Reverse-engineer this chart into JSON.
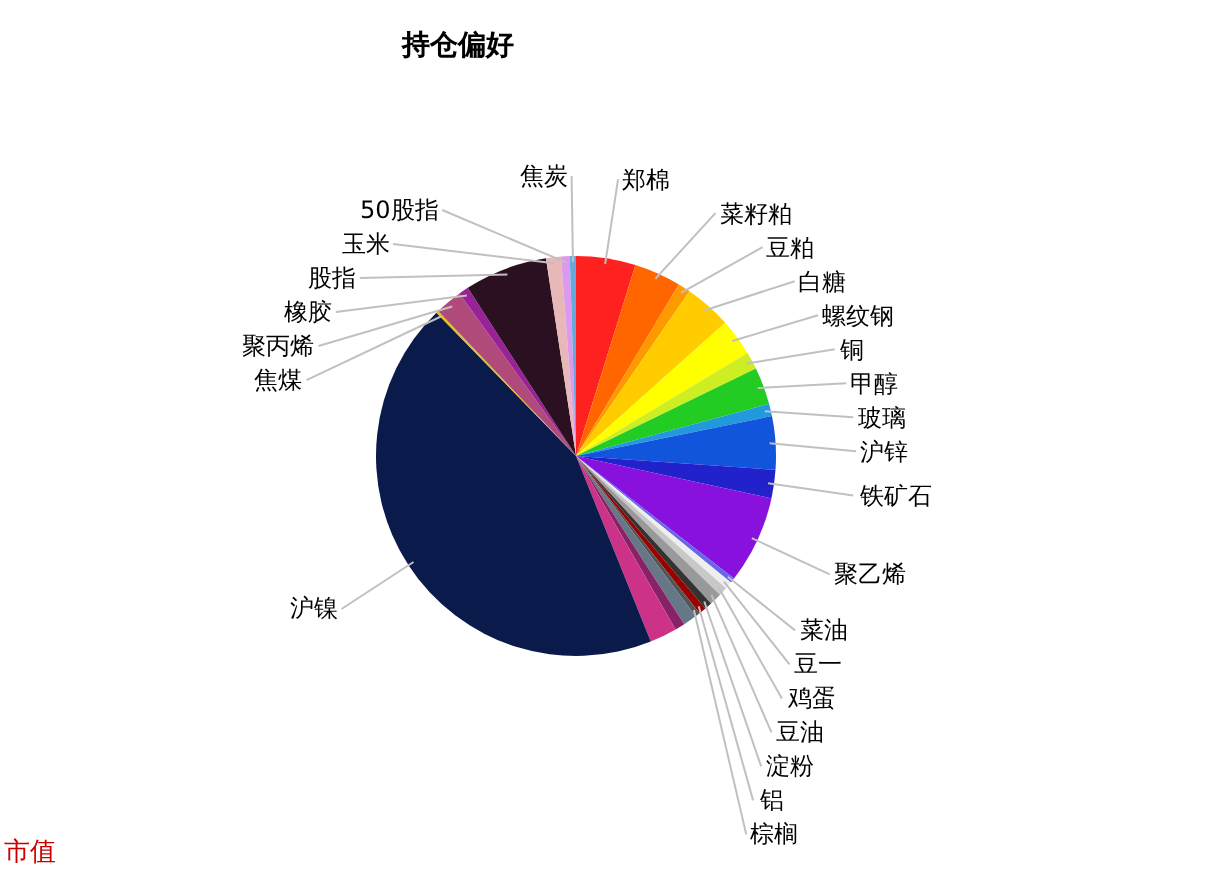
{
  "chart_data": {
    "type": "pie",
    "title": "持仓偏好",
    "categories": [
      "郑棉",
      "菜籽粕",
      "豆粕",
      "白糖",
      "螺纹钢",
      "铜",
      "甲醇",
      "玻璃",
      "沪锌",
      "铁矿石",
      "聚乙烯",
      "菜油",
      "豆一",
      "鸡蛋",
      "豆油",
      "淀粉",
      "铝",
      "棕榈",
      null,
      null,
      null,
      "沪镍",
      "焦煤",
      "聚丙烯",
      "橡胶",
      "股指",
      "玉米",
      "50股指",
      "焦炭"
    ],
    "values": [
      4.8,
      3.8,
      1.0,
      3.8,
      3.0,
      1.4,
      3.0,
      1.0,
      4.3,
      2.3,
      7.1,
      0.4,
      0.6,
      0.7,
      1.0,
      0.6,
      0.6,
      0.4,
      1.1,
      0.8,
      2.2,
      43.8,
      0.2,
      2.2,
      0.8,
      6.7,
      1.2,
      0.7,
      0.5
    ],
    "colors": [
      "#ff2020",
      "#ff6600",
      "#ff9900",
      "#ffcc00",
      "#ffff00",
      "#ccee22",
      "#22cc22",
      "#2299dd",
      "#1155dd",
      "#2222cc",
      "#8811dd",
      "#6666ee",
      "#eeeeee",
      "#c8c8c8",
      "#999999",
      "#333333",
      "#990000",
      "#555555",
      "#667788",
      "#882266",
      "#cc3388",
      "#0a1a4a",
      "#e0c020",
      "#b04a7a",
      "#992299",
      "#2a1020",
      "#e8b8b8",
      "#dd99ee",
      "#66aadd"
    ],
    "annotations": [
      "市值"
    ],
    "legend": false
  }
}
